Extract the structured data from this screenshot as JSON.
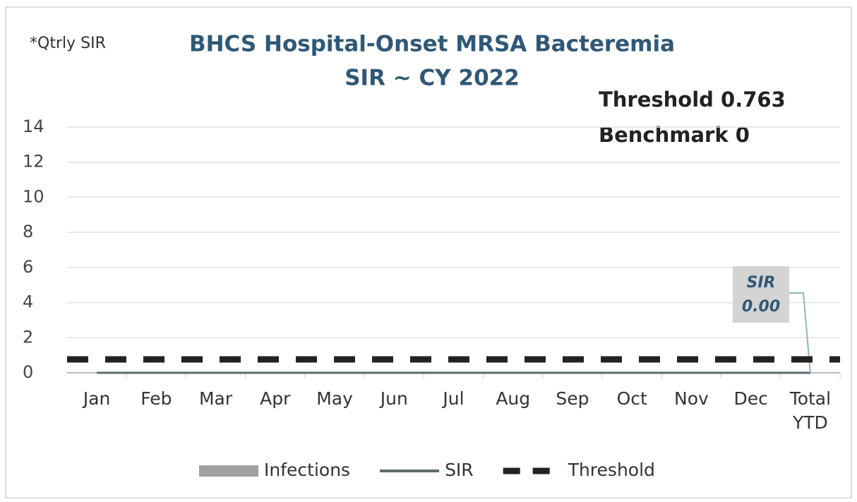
{
  "chart_data": {
    "type": "combo",
    "title": [
      "BHCS Hospital-Onset MRSA Bacteremia",
      "SIR ~ CY 2022"
    ],
    "subtitle": "*Qtrly SIR",
    "annotations": [
      "Threshold 0.763",
      "Benchmark 0"
    ],
    "categories": [
      "Jan",
      "Feb",
      "Mar",
      "Apr",
      "May",
      "Jun",
      "Jul",
      "Aug",
      "Sep",
      "Oct",
      "Nov",
      "Dec",
      "Total YTD"
    ],
    "series": [
      {
        "name": "Infections",
        "type": "bar",
        "color": "#a0a0a0",
        "values": [
          0,
          0,
          0,
          0,
          0,
          0,
          0,
          0,
          0,
          0,
          0,
          0,
          0
        ]
      },
      {
        "name": "SIR",
        "type": "line",
        "color": "#5b6b6b",
        "values": [
          0,
          0,
          0,
          0,
          0,
          0,
          0,
          0,
          0,
          0,
          0,
          0,
          0
        ],
        "value_labels": [
          null,
          null,
          null,
          null,
          null,
          null,
          null,
          null,
          null,
          null,
          null,
          null,
          "0.00"
        ]
      },
      {
        "name": "Threshold",
        "type": "dashed",
        "color": "#222222",
        "values": [
          0.763,
          0.763,
          0.763,
          0.763,
          0.763,
          0.763,
          0.763,
          0.763,
          0.763,
          0.763,
          0.763,
          0.763,
          0.763
        ]
      }
    ],
    "ylim": [
      0,
      14
    ],
    "yticks": [
      0,
      2,
      4,
      6,
      8,
      10,
      12,
      14
    ],
    "grid": true,
    "legend": "bottom"
  }
}
